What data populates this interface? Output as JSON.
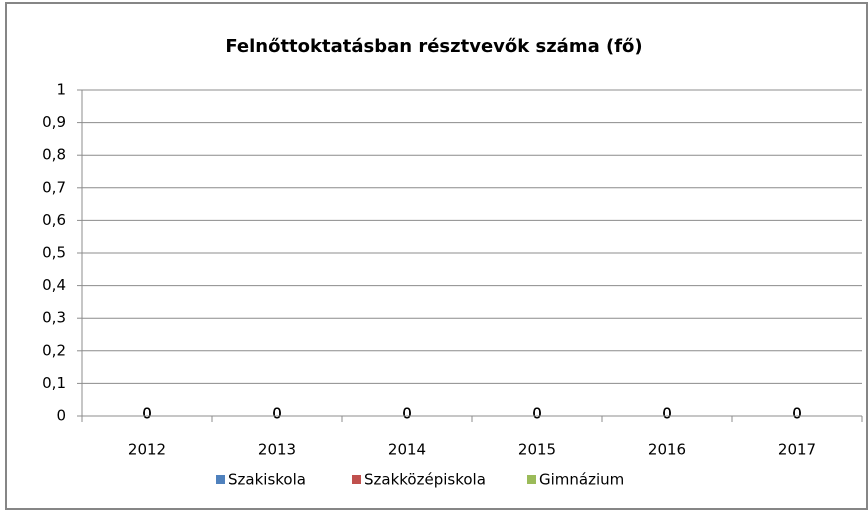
{
  "chart_data": {
    "type": "bar",
    "title": "Felnőttoktatásban résztvevők száma (fő)",
    "categories": [
      "2012",
      "2013",
      "2014",
      "2015",
      "2016",
      "2017"
    ],
    "series": [
      {
        "name": "Szakiskola",
        "color": "#4f81bd",
        "values": [
          0,
          0,
          0,
          0,
          0,
          0
        ]
      },
      {
        "name": "Szakközépiskola",
        "color": "#c0504d",
        "values": [
          0,
          0,
          0,
          0,
          0,
          0
        ]
      },
      {
        "name": "Gimnázium",
        "color": "#9bbb59",
        "values": [
          0,
          0,
          0,
          0,
          0,
          0
        ]
      }
    ],
    "ylim": [
      0,
      1
    ],
    "yticks": [
      0,
      {
        "value": 0.1,
        "label": "0,1"
      },
      {
        "value": 0.2,
        "label": "0,2"
      },
      {
        "value": 0.3,
        "label": "0,3"
      },
      {
        "value": 0.4,
        "label": "0,4"
      },
      {
        "value": 0.5,
        "label": "0,5"
      },
      {
        "value": 0.6,
        "label": "0,6"
      },
      {
        "value": 0.7,
        "label": "0,7"
      },
      {
        "value": 0.8,
        "label": "0,8"
      },
      {
        "value": 0.9,
        "label": "0,9"
      },
      1
    ],
    "grid": true,
    "legend": "bottom"
  }
}
